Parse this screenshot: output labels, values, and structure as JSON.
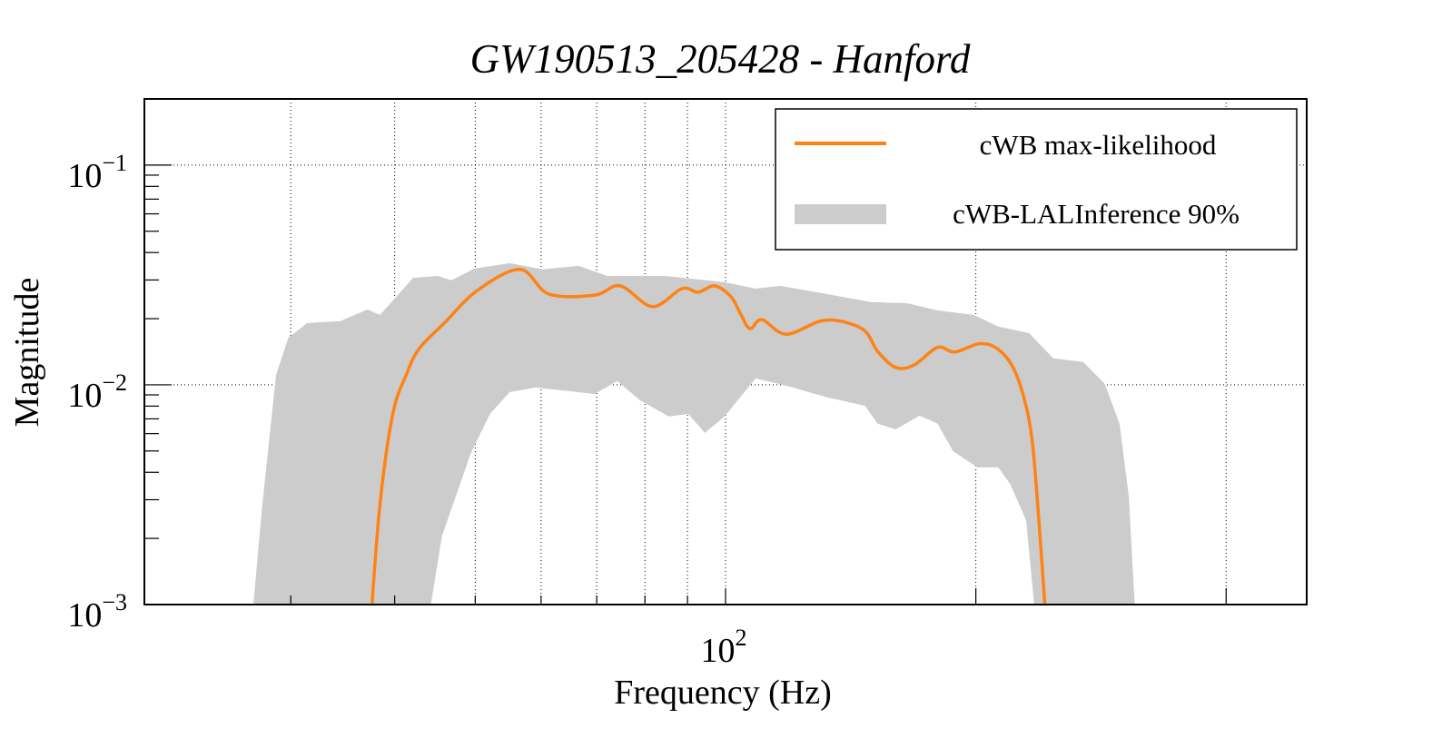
{
  "chart_data": {
    "type": "area",
    "title": "GW190513_205428 - Hanford",
    "xlabel": "Frequency (Hz)",
    "ylabel": "Magnitude",
    "xscale": "log",
    "yscale": "log",
    "xlim": [
      20,
      500
    ],
    "ylim": [
      0.001,
      0.2
    ],
    "grid": true,
    "legend_position": "top-right",
    "x_tick_labels": [
      {
        "value": 100,
        "base": "10",
        "exp": "2"
      }
    ],
    "x_gridlines": [
      30,
      40,
      50,
      60,
      70,
      80,
      90,
      100,
      200,
      400
    ],
    "y_tick_labels": [
      {
        "value": 0.001,
        "base": "10",
        "exp": "−3"
      },
      {
        "value": 0.01,
        "base": "10",
        "exp": "−2"
      },
      {
        "value": 0.1,
        "base": "10",
        "exp": "−1"
      }
    ],
    "y_gridlines": [
      0.01,
      0.1
    ],
    "series": [
      {
        "name": "cWB-LALInference 90%",
        "kind": "band",
        "color": "#cccccc",
        "upper": [
          [
            26.9,
            0.0008
          ],
          [
            27.7,
            0.00274
          ],
          [
            28.8,
            0.0111
          ],
          [
            29.8,
            0.0164
          ],
          [
            31.4,
            0.0191
          ],
          [
            34.4,
            0.0195
          ],
          [
            37.1,
            0.022
          ],
          [
            38.4,
            0.0208
          ],
          [
            40.2,
            0.0252
          ],
          [
            42.1,
            0.0307
          ],
          [
            45.1,
            0.0313
          ],
          [
            46.8,
            0.0299
          ],
          [
            49.9,
            0.0338
          ],
          [
            55.0,
            0.0358
          ],
          [
            60.3,
            0.0335
          ],
          [
            66.5,
            0.0348
          ],
          [
            72.1,
            0.0313
          ],
          [
            84.7,
            0.0313
          ],
          [
            99.7,
            0.0293
          ],
          [
            108.7,
            0.0274
          ],
          [
            116.3,
            0.0282
          ],
          [
            130.9,
            0.0261
          ],
          [
            149.6,
            0.0238
          ],
          [
            165.5,
            0.0235
          ],
          [
            179.9,
            0.0218
          ],
          [
            198.8,
            0.0208
          ],
          [
            212.8,
            0.0184
          ],
          [
            231.6,
            0.0172
          ],
          [
            247.9,
            0.0132
          ],
          [
            269.3,
            0.0127
          ],
          [
            285.8,
            0.0101
          ],
          [
            297.8,
            0.00664
          ],
          [
            305.5,
            0.0031
          ],
          [
            311.0,
            0.0009
          ]
        ],
        "lower": [
          [
            43.8,
            0.0008
          ],
          [
            45.6,
            0.00205
          ],
          [
            49.4,
            0.0049
          ],
          [
            52.1,
            0.00738
          ],
          [
            55.0,
            0.00927
          ],
          [
            59.1,
            0.00972
          ],
          [
            69.6,
            0.00909
          ],
          [
            74.1,
            0.0104
          ],
          [
            78.9,
            0.0085
          ],
          [
            85.5,
            0.00717
          ],
          [
            90.2,
            0.00738
          ],
          [
            94.4,
            0.00604
          ],
          [
            99.7,
            0.00717
          ],
          [
            108.7,
            0.0107
          ],
          [
            118.4,
            0.0099
          ],
          [
            132.9,
            0.00875
          ],
          [
            147.1,
            0.00803
          ],
          [
            152.4,
            0.00665
          ],
          [
            160.2,
            0.00627
          ],
          [
            171.1,
            0.00724
          ],
          [
            179.9,
            0.00665
          ],
          [
            187.8,
            0.00499
          ],
          [
            200.9,
            0.00421
          ],
          [
            212.8,
            0.00421
          ],
          [
            219.8,
            0.00355
          ],
          [
            229.9,
            0.00242
          ],
          [
            235.7,
            0.0009
          ]
        ]
      },
      {
        "name": "cWB max-likelihood",
        "kind": "line",
        "color": "#ff8214",
        "points": [
          [
            37.4,
            0.0008
          ],
          [
            38.4,
            0.00285
          ],
          [
            39.8,
            0.00738
          ],
          [
            41.3,
            0.0111
          ],
          [
            42.8,
            0.0146
          ],
          [
            45.9,
            0.0191
          ],
          [
            50.3,
            0.0269
          ],
          [
            56.6,
            0.0335
          ],
          [
            61.3,
            0.0259
          ],
          [
            69.6,
            0.0256
          ],
          [
            74.7,
            0.0282
          ],
          [
            81.7,
            0.0227
          ],
          [
            88.6,
            0.0274
          ],
          [
            92.7,
            0.0264
          ],
          [
            97.0,
            0.0282
          ],
          [
            101.5,
            0.0252
          ],
          [
            104.4,
            0.0208
          ],
          [
            107.0,
            0.018
          ],
          [
            110.6,
            0.0198
          ],
          [
            118.4,
            0.017
          ],
          [
            131.9,
            0.0197
          ],
          [
            145.9,
            0.018
          ],
          [
            152.4,
            0.0142
          ],
          [
            160.2,
            0.012
          ],
          [
            168.5,
            0.0123
          ],
          [
            179.9,
            0.0148
          ],
          [
            188.6,
            0.0141
          ],
          [
            202.4,
            0.0154
          ],
          [
            212.8,
            0.0145
          ],
          [
            222.2,
            0.0118
          ],
          [
            229.9,
            0.008
          ],
          [
            234.1,
            0.00533
          ],
          [
            237.7,
            0.00266
          ],
          [
            242.6,
            0.0009
          ]
        ]
      }
    ],
    "legend": [
      {
        "label": "cWB max-likelihood",
        "kind": "line",
        "color": "#ff8214"
      },
      {
        "label": "cWB-LALInference 90%",
        "kind": "band",
        "color": "#cccccc"
      }
    ]
  }
}
